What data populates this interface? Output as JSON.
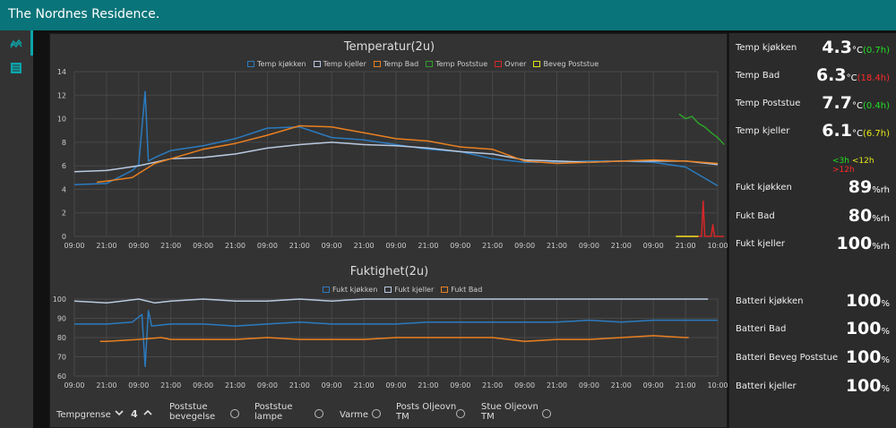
{
  "header": {
    "title": "The Nordnes Residence."
  },
  "nav": [
    {
      "icon": "chart-line-icon"
    },
    {
      "icon": "list-icon"
    }
  ],
  "colors": {
    "accent": "#097479",
    "temp_kjokken": "#2b7bc0",
    "temp_kjeller": "#b9c9e0",
    "temp_bad": "#e98020",
    "temp_poststue": "#2ea02c",
    "ovner": "#d62728",
    "beveg_poststue": "#e1e11e",
    "green": "#22e022",
    "red": "#ff2a2a",
    "yellow": "#e8e81a"
  },
  "chart_data": [
    {
      "type": "line",
      "title": "Temperatur(2u)",
      "ylim": [
        0,
        14
      ],
      "yticks": [
        0,
        2,
        4,
        6,
        8,
        10,
        12,
        14
      ],
      "xticks": [
        "09:00",
        "21:00",
        "09:00",
        "21:00",
        "09:00",
        "21:00",
        "09:00",
        "21:00",
        "09:00",
        "21:00",
        "09:00",
        "21:00",
        "09:00",
        "21:00",
        "09:00",
        "21:00",
        "09:00",
        "21:00",
        "09:00",
        "21:00",
        "10:00"
      ],
      "legend_position": "top",
      "grid": true,
      "series": [
        {
          "name": "Temp kjøkken",
          "points": [
            [
              0,
              4.4
            ],
            [
              1,
              4.5
            ],
            [
              1.8,
              5.6
            ],
            [
              2,
              6.1
            ],
            [
              2.2,
              12.3
            ],
            [
              2.3,
              6.4
            ],
            [
              2.5,
              6.7
            ],
            [
              3,
              7.3
            ],
            [
              4,
              7.7
            ],
            [
              5,
              8.3
            ],
            [
              6,
              9.2
            ],
            [
              7,
              9.3
            ],
            [
              8,
              8.4
            ],
            [
              9,
              8.2
            ],
            [
              10,
              7.8
            ],
            [
              11,
              7.4
            ],
            [
              12,
              7.2
            ],
            [
              13,
              6.6
            ],
            [
              14,
              6.3
            ],
            [
              15,
              6.3
            ],
            [
              16,
              6.4
            ],
            [
              17,
              6.4
            ],
            [
              18,
              6.3
            ],
            [
              19,
              5.9
            ],
            [
              20,
              4.3
            ]
          ]
        },
        {
          "name": "Temp kjeller",
          "points": [
            [
              0,
              5.5
            ],
            [
              1,
              5.6
            ],
            [
              2,
              6.0
            ],
            [
              3,
              6.6
            ],
            [
              4,
              6.7
            ],
            [
              5,
              7.0
            ],
            [
              6,
              7.5
            ],
            [
              7,
              7.8
            ],
            [
              8,
              8.0
            ],
            [
              9,
              7.8
            ],
            [
              10,
              7.7
            ],
            [
              11,
              7.5
            ],
            [
              12,
              7.2
            ],
            [
              13,
              7.0
            ],
            [
              14,
              6.5
            ],
            [
              15,
              6.4
            ],
            [
              16,
              6.3
            ],
            [
              17,
              6.4
            ],
            [
              18,
              6.4
            ],
            [
              19,
              6.4
            ],
            [
              20,
              6.1
            ]
          ]
        },
        {
          "name": "Temp Bad",
          "points": [
            [
              0.7,
              4.6
            ],
            [
              1,
              4.7
            ],
            [
              1.8,
              5.0
            ],
            [
              2.5,
              6.2
            ],
            [
              3,
              6.6
            ],
            [
              4,
              7.4
            ],
            [
              5,
              7.9
            ],
            [
              6,
              8.6
            ],
            [
              7,
              9.4
            ],
            [
              8,
              9.3
            ],
            [
              9,
              8.8
            ],
            [
              10,
              8.3
            ],
            [
              11,
              8.1
            ],
            [
              12,
              7.6
            ],
            [
              13,
              7.4
            ],
            [
              14,
              6.4
            ],
            [
              15,
              6.2
            ],
            [
              16,
              6.3
            ],
            [
              17,
              6.4
            ],
            [
              18,
              6.5
            ],
            [
              19,
              6.4
            ],
            [
              20,
              6.2
            ]
          ]
        },
        {
          "name": "Temp Poststue",
          "points": [
            [
              18.8,
              10.4
            ],
            [
              19,
              10.0
            ],
            [
              19.2,
              10.2
            ],
            [
              19.4,
              9.6
            ],
            [
              19.6,
              9.3
            ],
            [
              19.8,
              8.8
            ],
            [
              20,
              8.4
            ],
            [
              20.2,
              7.8
            ]
          ]
        },
        {
          "name": "Ovner",
          "points": [
            [
              18.8,
              0
            ],
            [
              19.5,
              0
            ],
            [
              19.55,
              3.0
            ],
            [
              19.6,
              0
            ],
            [
              19.8,
              0
            ],
            [
              19.85,
              1.0
            ],
            [
              19.9,
              0
            ],
            [
              20.2,
              0
            ]
          ]
        },
        {
          "name": "Beveg Poststue",
          "points": [
            [
              18.7,
              0
            ],
            [
              19.4,
              0
            ]
          ]
        }
      ]
    },
    {
      "type": "line",
      "title": "Fuktighet(2u)",
      "ylim": [
        60,
        100
      ],
      "yticks": [
        60,
        70,
        80,
        90,
        100
      ],
      "xticks": [
        "09:00",
        "21:00",
        "09:00",
        "21:00",
        "09:00",
        "21:00",
        "09:00",
        "21:00",
        "09:00",
        "21:00",
        "09:00",
        "21:00",
        "09:00",
        "21:00",
        "09:00",
        "21:00",
        "09:00",
        "21:00",
        "09:00",
        "21:00",
        "10:00"
      ],
      "legend_position": "top",
      "grid": true,
      "series": [
        {
          "name": "Fukt kjøkken",
          "points": [
            [
              0,
              87
            ],
            [
              1,
              87
            ],
            [
              1.8,
              88
            ],
            [
              2.1,
              92
            ],
            [
              2.2,
              65
            ],
            [
              2.3,
              94
            ],
            [
              2.4,
              86
            ],
            [
              3,
              87
            ],
            [
              4,
              87
            ],
            [
              5,
              86
            ],
            [
              6,
              87
            ],
            [
              7,
              88
            ],
            [
              8,
              87
            ],
            [
              9,
              87
            ],
            [
              10,
              87
            ],
            [
              11,
              88
            ],
            [
              12,
              88
            ],
            [
              13,
              88
            ],
            [
              14,
              88
            ],
            [
              15,
              88
            ],
            [
              16,
              89
            ],
            [
              17,
              88
            ],
            [
              18,
              89
            ],
            [
              19,
              89
            ],
            [
              20,
              89
            ]
          ]
        },
        {
          "name": "Fukt kjeller",
          "points": [
            [
              0,
              99
            ],
            [
              1,
              98
            ],
            [
              2,
              100
            ],
            [
              2.5,
              98
            ],
            [
              3,
              99
            ],
            [
              4,
              100
            ],
            [
              5,
              99
            ],
            [
              6,
              99
            ],
            [
              7,
              100
            ],
            [
              8,
              99
            ],
            [
              9,
              100
            ],
            [
              10,
              100
            ],
            [
              11,
              100
            ],
            [
              12,
              100
            ],
            [
              13,
              100
            ],
            [
              14,
              100
            ],
            [
              15,
              100
            ],
            [
              16,
              100
            ],
            [
              17,
              100
            ],
            [
              18,
              100
            ],
            [
              19,
              100
            ],
            [
              19.7,
              100
            ]
          ]
        },
        {
          "name": "Fukt Bad",
          "points": [
            [
              0.8,
              78
            ],
            [
              1,
              78
            ],
            [
              2,
              79
            ],
            [
              2.7,
              80
            ],
            [
              3,
              79
            ],
            [
              4,
              79
            ],
            [
              5,
              79
            ],
            [
              6,
              80
            ],
            [
              7,
              79
            ],
            [
              8,
              79
            ],
            [
              9,
              79
            ],
            [
              10,
              80
            ],
            [
              11,
              80
            ],
            [
              12,
              80
            ],
            [
              13,
              80
            ],
            [
              14,
              78
            ],
            [
              15,
              79
            ],
            [
              16,
              79
            ],
            [
              17,
              80
            ],
            [
              18,
              81
            ],
            [
              19,
              80
            ],
            [
              19.1,
              80
            ]
          ]
        }
      ]
    }
  ],
  "controls": {
    "tempgrense_label": "Tempgrense",
    "tempgrense_value": "4",
    "toggles": [
      {
        "label_1": "Poststue",
        "label_2": "bevegelse"
      },
      {
        "label_1": "Poststue",
        "label_2": "lampe"
      },
      {
        "label_1": "Varme",
        "label_2": ""
      },
      {
        "label_1": "Posts Oljeovn",
        "label_2": "TM"
      },
      {
        "label_1": "Stue Oljeovn",
        "label_2": "TM"
      }
    ]
  },
  "panel": {
    "temps": [
      {
        "label": "Temp kjøkken",
        "value": "4.3",
        "unit": "°C",
        "delta": "(0.7h)",
        "delta_color": "green"
      },
      {
        "label": "Temp Bad",
        "value": "6.3",
        "unit": "°C",
        "delta": "(18.4h)",
        "delta_color": "red"
      },
      {
        "label": "Temp Poststue",
        "value": "7.7",
        "unit": "°C",
        "delta": "(0.4h)",
        "delta_color": "green"
      },
      {
        "label": "Temp kjeller",
        "value": "6.1",
        "unit": "°C",
        "delta": "(6.7h)",
        "delta_color": "yellow"
      }
    ],
    "age_legend": [
      {
        "text": "<3h",
        "color": "green"
      },
      {
        "text": "<12h",
        "color": "yellow"
      },
      {
        "text": ">12h",
        "color": "red"
      }
    ],
    "humidity": [
      {
        "label": "Fukt kjøkken",
        "value": "89",
        "unit": "%rh"
      },
      {
        "label": "Fukt Bad",
        "value": "80",
        "unit": "%rh"
      },
      {
        "label": "Fukt kjeller",
        "value": "100",
        "unit": "%rh"
      }
    ],
    "battery": [
      {
        "label": "Batteri kjøkken",
        "value": "100",
        "unit": "%"
      },
      {
        "label": "Batteri Bad",
        "value": "100",
        "unit": "%"
      },
      {
        "label": "Batteri Beveg Poststue",
        "value": "100",
        "unit": "%"
      },
      {
        "label": "Batteri kjeller",
        "value": "100",
        "unit": "%"
      }
    ]
  }
}
